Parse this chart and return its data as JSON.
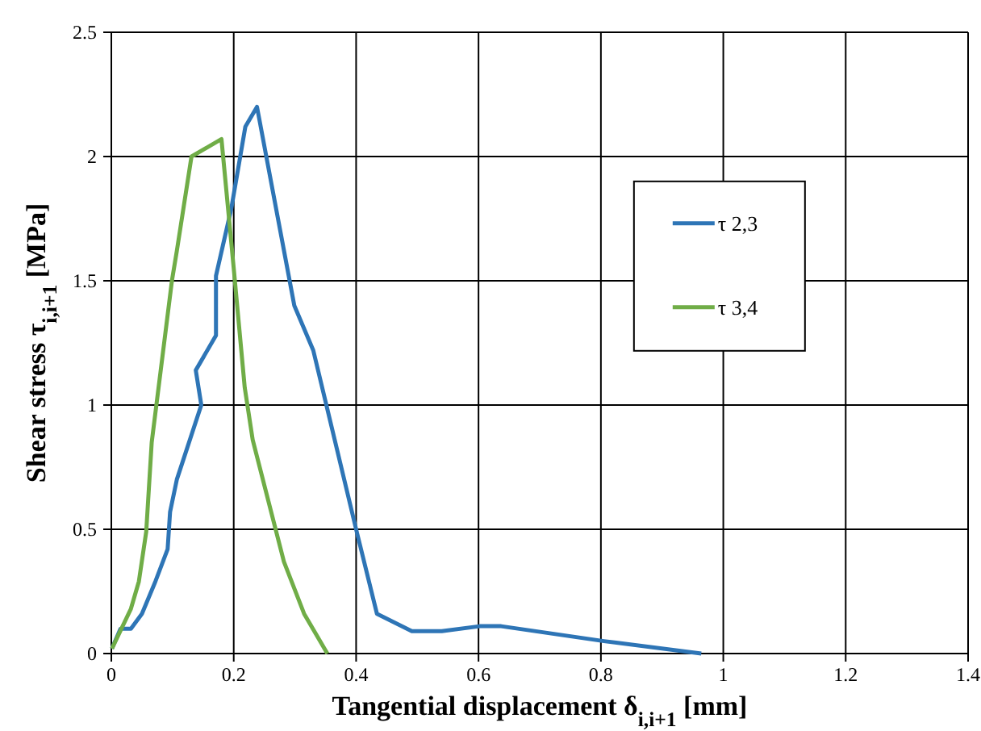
{
  "chart_data": {
    "type": "line",
    "xlabel": "Tangential displacement δ$_{i,i+1}$  [mm]",
    "ylabel": "Shear stress  τ$_{i,i+1}$ [MPa]",
    "xlim": [
      0,
      1.4
    ],
    "xticks": [
      0,
      0.2,
      0.4,
      0.6,
      0.8,
      1,
      1.2,
      1.4
    ],
    "ylim": [
      0,
      2.5
    ],
    "yticks": [
      0,
      0.5,
      1,
      1.5,
      2,
      2.5
    ],
    "grid": true,
    "legend": "right",
    "marker": "none",
    "line_style": "solid",
    "series": [
      {
        "name": "τ 2,3",
        "color": "#2e75b6",
        "x": [
          0.001,
          0.015,
          0.032,
          0.05,
          0.072,
          0.092,
          0.096,
          0.107,
          0.147,
          0.138,
          0.171,
          0.171,
          0.196,
          0.219,
          0.238,
          0.299,
          0.33,
          0.4,
          0.434,
          0.491,
          0.54,
          0.602,
          0.637,
          0.805,
          0.964
        ],
        "values": [
          0.02,
          0.1,
          0.1,
          0.16,
          0.29,
          0.42,
          0.57,
          0.7,
          1.0,
          1.14,
          1.28,
          1.52,
          1.79,
          2.12,
          2.2,
          1.4,
          1.22,
          0.5,
          0.16,
          0.09,
          0.09,
          0.11,
          0.11,
          0.05,
          0
        ]
      },
      {
        "name": "τ 3,4",
        "color": "#70ad47",
        "x": [
          0.001,
          0.032,
          0.045,
          0.057,
          0.066,
          0.099,
          0.107,
          0.131,
          0.18,
          0.2,
          0.218,
          0.231,
          0.282,
          0.315,
          0.353
        ],
        "values": [
          0.02,
          0.18,
          0.29,
          0.49,
          0.85,
          1.5,
          1.62,
          2.0,
          2.07,
          1.55,
          1.07,
          0.86,
          0.37,
          0.16,
          0
        ]
      }
    ]
  }
}
